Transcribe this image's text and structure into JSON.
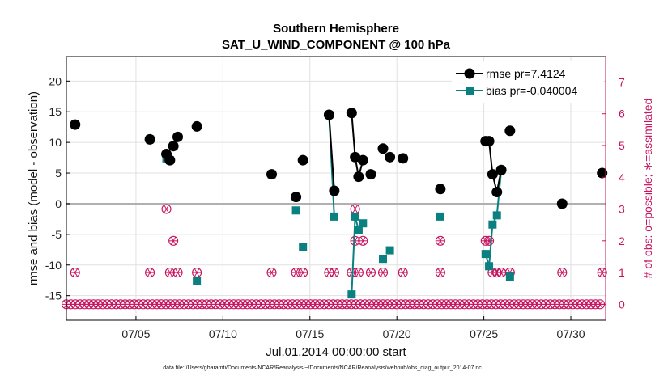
{
  "chart_data": {
    "type": "scatter",
    "title": "Southern Hemisphere",
    "subtitle": "SAT_U_WIND_COMPONENT @ 100 hPa",
    "xlabel": "Jul.01,2014 00:00:00 start",
    "ylabel": "rmse and bias (model - observation)",
    "ylabel_right": "# of obs: o=possible; ∗=assimilated",
    "footnote": "data file: /Users/gharamti/Documents/NCAR/Reanalysis/~/Documents/NCAR/Reanalysis/webpub/obs_diag_output_2014-07.nc",
    "xlim": [
      1,
      32
    ],
    "ylim": [
      -19,
      24
    ],
    "ylim_right": [
      -0.5,
      7.8
    ],
    "x_ticks": [
      5,
      10,
      15,
      20,
      25,
      30
    ],
    "x_tick_labels": [
      "07/05",
      "07/10",
      "07/15",
      "07/20",
      "07/25",
      "07/30"
    ],
    "y_ticks": [
      -15,
      -10,
      -5,
      0,
      5,
      10,
      15,
      20
    ],
    "y_tick_labels": [
      "-15",
      "-10",
      "-5",
      "0",
      "5",
      "10",
      "15",
      "20"
    ],
    "y_ticks_right": [
      0,
      1,
      2,
      3,
      4,
      5,
      6,
      7
    ],
    "y_tick_labels_right": [
      "0",
      "1",
      "2",
      "3",
      "4",
      "5",
      "6",
      "7"
    ],
    "zero_line": 0,
    "grid": true,
    "legend_position": "top-right",
    "colors": {
      "rmse": "#000000",
      "bias": "#0a8080",
      "obs": "#c7155f",
      "zero_line": "#b0b0b0",
      "grid": "#e0e0e0"
    },
    "series": [
      {
        "name": "rmse pr=7.4124",
        "color": "#000000",
        "marker": "circle",
        "points": [
          [
            1.5,
            12.9
          ],
          [
            5.8,
            10.5
          ],
          [
            6.75,
            8.1
          ],
          [
            6.95,
            7.1
          ],
          [
            7.15,
            9.4
          ],
          [
            7.4,
            10.9
          ],
          [
            8.5,
            12.6
          ],
          [
            12.8,
            4.8
          ],
          [
            14.2,
            1.1
          ],
          [
            14.6,
            7.1
          ],
          [
            16.1,
            14.5
          ],
          [
            16.4,
            2.1
          ],
          [
            17.4,
            14.8
          ],
          [
            17.6,
            7.6
          ],
          [
            17.8,
            4.4
          ],
          [
            18.05,
            7.1
          ],
          [
            18.5,
            4.8
          ],
          [
            19.2,
            9.0
          ],
          [
            19.6,
            7.6
          ],
          [
            20.35,
            7.4
          ],
          [
            22.5,
            2.4
          ],
          [
            25.1,
            10.2
          ],
          [
            25.3,
            10.2
          ],
          [
            25.5,
            4.8
          ],
          [
            25.75,
            1.9
          ],
          [
            26.0,
            5.5
          ],
          [
            26.5,
            11.9
          ],
          [
            29.5,
            0.0
          ],
          [
            31.8,
            5.0
          ]
        ],
        "segments": [
          [
            [
              16.1,
              14.5
            ],
            [
              16.4,
              2.1
            ]
          ],
          [
            [
              17.4,
              14.8
            ],
            [
              17.6,
              7.6
            ],
            [
              17.8,
              4.4
            ],
            [
              18.05,
              7.1
            ]
          ],
          [
            [
              25.1,
              10.2
            ],
            [
              25.3,
              10.2
            ],
            [
              25.5,
              4.8
            ],
            [
              25.75,
              1.9
            ],
            [
              26.0,
              5.5
            ]
          ]
        ]
      },
      {
        "name": "bias pr=-0.040004",
        "color": "#0a8080",
        "marker": "square",
        "points": [
          [
            1.5,
            12.9
          ],
          [
            5.8,
            10.5
          ],
          [
            6.75,
            7.4
          ],
          [
            6.95,
            7.1
          ],
          [
            7.15,
            9.4
          ],
          [
            7.4,
            10.9
          ],
          [
            8.5,
            -12.6
          ],
          [
            12.8,
            4.8
          ],
          [
            14.2,
            -1.1
          ],
          [
            14.6,
            -7.0
          ],
          [
            16.1,
            14.5
          ],
          [
            16.4,
            -2.1
          ],
          [
            17.4,
            -14.8
          ],
          [
            17.6,
            -2.1
          ],
          [
            17.8,
            -4.3
          ],
          [
            18.05,
            -3.2
          ],
          [
            18.5,
            4.8
          ],
          [
            19.2,
            -9.0
          ],
          [
            19.6,
            -7.6
          ],
          [
            20.35,
            7.4
          ],
          [
            22.5,
            -2.1
          ],
          [
            25.1,
            -8.2
          ],
          [
            25.3,
            -10.2
          ],
          [
            25.5,
            -3.4
          ],
          [
            25.75,
            -1.9
          ],
          [
            26.0,
            5.5
          ],
          [
            26.5,
            -11.9
          ],
          [
            29.5,
            0.0
          ],
          [
            31.8,
            5.0
          ]
        ],
        "segments": [
          [
            [
              16.1,
              14.5
            ],
            [
              16.4,
              -2.1
            ]
          ],
          [
            [
              17.4,
              -14.8
            ],
            [
              17.6,
              -2.1
            ],
            [
              17.8,
              -4.3
            ],
            [
              18.05,
              -3.2
            ]
          ],
          [
            [
              25.1,
              -8.2
            ],
            [
              25.3,
              -10.2
            ],
            [
              25.5,
              -3.4
            ],
            [
              25.75,
              -1.9
            ],
            [
              26.0,
              5.5
            ]
          ]
        ]
      },
      {
        "name": "# of obs possible/assimilated",
        "axis": "right",
        "color": "#c7155f",
        "marker": "circle-star",
        "ones_x": [
          1.5,
          5.8,
          6.95,
          7.4,
          8.5,
          12.8,
          14.2,
          14.6,
          16.1,
          16.4,
          17.4,
          17.8,
          18.5,
          19.2,
          20.35,
          22.5,
          25.5,
          25.75,
          26.0,
          26.5,
          29.5,
          31.8
        ],
        "twos_x": [
          7.15,
          17.6,
          18.05,
          22.5,
          25.1,
          25.3
        ],
        "threes_x": [
          6.75,
          17.6
        ],
        "zero_x_start": 1.0,
        "zero_x_end": 31.9,
        "zero_spacing": 0.26
      }
    ],
    "legend": [
      {
        "label": "rmse pr=7.4124",
        "color": "#000000",
        "marker": "circle"
      },
      {
        "label": "bias pr=-0.040004",
        "color": "#0a8080",
        "marker": "square"
      }
    ]
  }
}
